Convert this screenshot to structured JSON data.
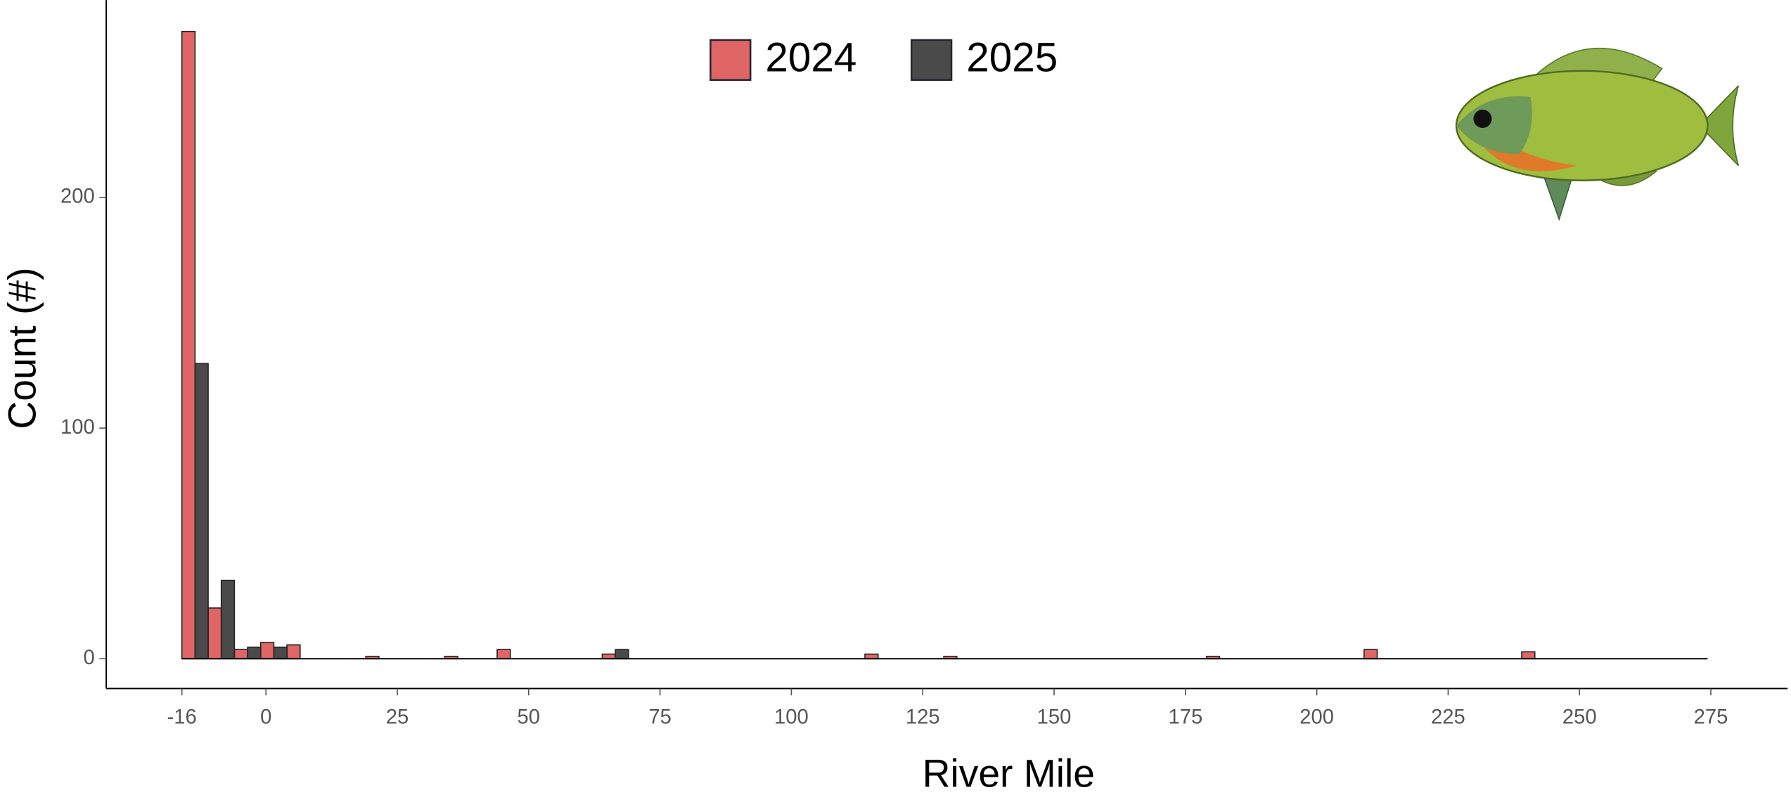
{
  "chart_data": {
    "type": "histogram",
    "x_label": "River Mile",
    "y_label": "Count (#)",
    "bins": [
      -16,
      -11,
      -6,
      -1,
      4,
      9,
      14,
      19,
      24,
      29,
      34,
      39,
      44,
      49,
      54,
      59,
      64,
      69,
      74,
      79,
      84,
      89,
      94,
      99,
      104,
      109,
      114,
      119,
      124,
      129,
      134,
      139,
      144,
      149,
      154,
      159,
      164,
      169,
      174,
      179,
      184,
      189,
      194,
      199,
      204,
      209,
      214,
      219,
      224,
      229,
      234,
      239,
      244
    ],
    "series": [
      {
        "name": "2024",
        "color": "#e06666",
        "values": [
          272,
          22,
          4,
          7,
          6,
          0,
          0,
          1,
          0,
          0,
          1,
          0,
          4,
          0,
          0,
          0,
          2,
          0,
          0,
          0,
          0,
          0,
          0,
          0,
          0,
          0,
          2,
          0,
          0,
          1,
          0,
          0,
          0,
          0,
          0,
          0,
          0,
          0,
          0,
          1,
          0,
          0,
          0,
          0,
          0,
          4,
          0,
          0,
          0,
          0,
          0,
          3
        ]
      },
      {
        "name": "2025",
        "color": "#4a4a4a",
        "values": [
          128,
          34,
          5,
          5,
          0,
          0,
          0,
          0,
          0,
          0,
          0,
          0,
          0,
          0,
          0,
          0,
          4,
          0,
          0,
          0,
          0,
          0,
          0,
          0,
          0,
          0,
          0,
          0,
          0,
          0,
          0,
          0,
          0,
          0,
          0,
          0,
          0,
          0,
          0,
          0,
          0,
          0,
          0,
          0,
          0,
          0,
          0,
          0,
          0,
          0,
          0,
          0
        ]
      }
    ],
    "xlim": [
      -30.4,
      289.6
    ],
    "xticks": [
      -16,
      0,
      25,
      50,
      75,
      100,
      125,
      150,
      175,
      200,
      225,
      250,
      275
    ],
    "ylim": [
      -12.9,
      285.6
    ],
    "yticks": [
      0,
      100,
      200
    ],
    "legend": "top-center"
  }
}
